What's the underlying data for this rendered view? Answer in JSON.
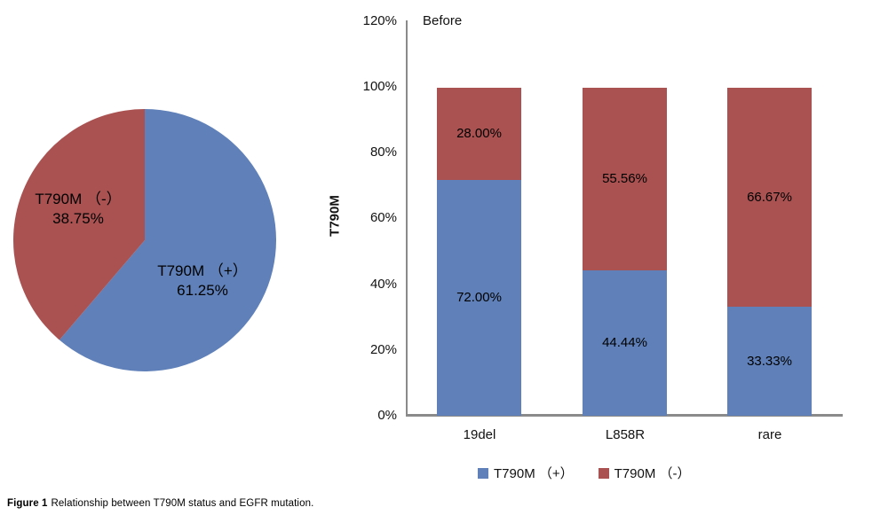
{
  "figure": {
    "caption_label": "Figure 1",
    "caption_text": "Relationship between T790M status and EGFR mutation."
  },
  "colors": {
    "positive": "#5F80B8",
    "negative": "#AA5252",
    "axis": "#8A8A8A"
  },
  "chart_data": [
    {
      "type": "pie",
      "start_angle_deg": 0,
      "direction": "clockwise",
      "legend_position": "none",
      "slices": [
        {
          "label": "T790M （+）",
          "value": 61.25,
          "display": "61.25%",
          "color_key": "positive"
        },
        {
          "label": "T790M （-）",
          "value": 38.75,
          "display": "38.75%",
          "color_key": "negative"
        }
      ]
    },
    {
      "type": "bar",
      "stacked": true,
      "title": "Before",
      "xlabel": "",
      "ylabel": "T790M",
      "ylim": [
        0,
        120
      ],
      "grid": false,
      "legend_position": "bottom",
      "categories": [
        "19del",
        "L858R",
        "rare"
      ],
      "y_ticks": [
        "120%",
        "100%",
        "80%",
        "60%",
        "40%",
        "20%",
        "0%"
      ],
      "series": [
        {
          "name": "T790M （+）",
          "color_key": "positive",
          "values": [
            72.0,
            44.44,
            33.33
          ],
          "labels": [
            "72.00%",
            "44.44%",
            "33.33%"
          ]
        },
        {
          "name": "T790M （-）",
          "color_key": "negative",
          "values": [
            28.0,
            55.56,
            66.67
          ],
          "labels": [
            "28.00%",
            "55.56%",
            "66.67%"
          ]
        }
      ],
      "legend": [
        "T790M （+）",
        "T790M （-）"
      ]
    }
  ]
}
